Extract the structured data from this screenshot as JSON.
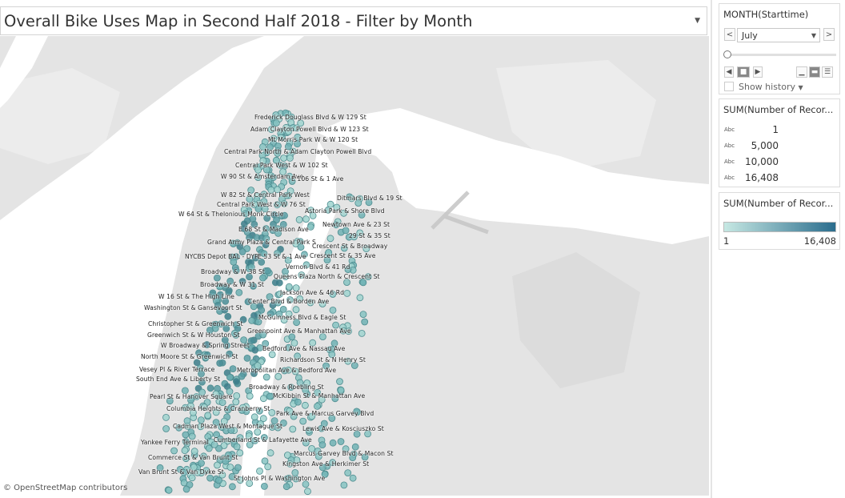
{
  "title": "Overall Bike Uses Map in Second Half 2018 - Filter by Month",
  "map": {
    "attribution": "© OpenStreetMap contributors",
    "station_labels": [
      "Frederick Douglass Blvd & W 129 St",
      "Adam Clayton Powell Blvd & W 123 St",
      "Mt Morris Park W & W 120 St",
      "Central Park North & Adam Clayton Powell Blvd",
      "Central Park West & W 102 St",
      "W 90 St & Amsterdam Ave",
      "E 106 St & 1 Ave",
      "W 82 St & Central Park West",
      "Central Park West & W 76 St",
      "W 64 St & Thelonious Monk Circle",
      "Ditmars Blvd & 19 St",
      "Astoria Park & Shore Blvd",
      "E 68 St & Madison Ave",
      "Newtown Ave & 23 St",
      "Grand Army Plaza & Central Park S",
      "29 St & 35 St",
      "Crescent St & Broadway",
      "NYCBS Depot BAL - DYR",
      "E 53 St & 1 Ave",
      "Crescent St & 35 Ave",
      "Vernon Blvd & 41 Rd",
      "Broadway & W 38 St",
      "Queens Plaza North & Crescent St",
      "Broadway & W 31 St",
      "Jackson Ave & 46 Rd",
      "W 16 St & The High Line",
      "Center Blvd & Borden Ave",
      "Washington St & Gansevoort St",
      "McGuinness Blvd & Eagle St",
      "Christopher St & Greenwich St",
      "Greenpoint Ave & Manhattan Ave",
      "Greenwich St & W Houston St",
      "W Broadway & Spring Street",
      "Bedford Ave & Nassau Ave",
      "North Moore St & Greenwich St",
      "Richardson St & N Henry St",
      "Vesey Pl & River Terrace",
      "Metropolitan Ave & Bedford Ave",
      "South End Ave & Liberty St",
      "Broadway & Roebling St",
      "Pearl St & Hanover Square",
      "McKibbin St & Manhattan Ave",
      "Columbia Heights & Cranberry St",
      "Park Ave & Marcus Garvey Blvd",
      "Cadman Plaza West & Montague St",
      "Lewis Ave & Kosciuszko St",
      "Yankee Ferry Terminal",
      "Cumberland St & Lafayette Ave",
      "Marcus Garvey Blvd & Macon St",
      "Commerce St & Van Brunt St",
      "Kingston Ave & Herkimer St",
      "Van Brunt St & Van Dyke St",
      "St Johns Pl & Washington Ave"
    ]
  },
  "filter": {
    "title": "MONTH(Starttime)",
    "selected": "July",
    "show_history_label": "Show history",
    "prev_label": "<",
    "next_label": ">"
  },
  "size_legend": {
    "title": "SUM(Number of Recor...",
    "items": [
      {
        "marker": "Abc",
        "value": "1"
      },
      {
        "marker": "Abc",
        "value": "5,000"
      },
      {
        "marker": "Abc",
        "value": "10,000"
      },
      {
        "marker": "Abc",
        "value": "16,408"
      }
    ]
  },
  "color_legend": {
    "title": "SUM(Number of Recor...",
    "min": "1",
    "max": "16,408",
    "color_low": "#c6e8e3",
    "color_high": "#2b6d8d"
  },
  "colors": {
    "water": "#ffffff",
    "land": "#e6e6e6",
    "marker_fill": "#7fbfbf",
    "marker_stroke": "#4e8c8f"
  }
}
